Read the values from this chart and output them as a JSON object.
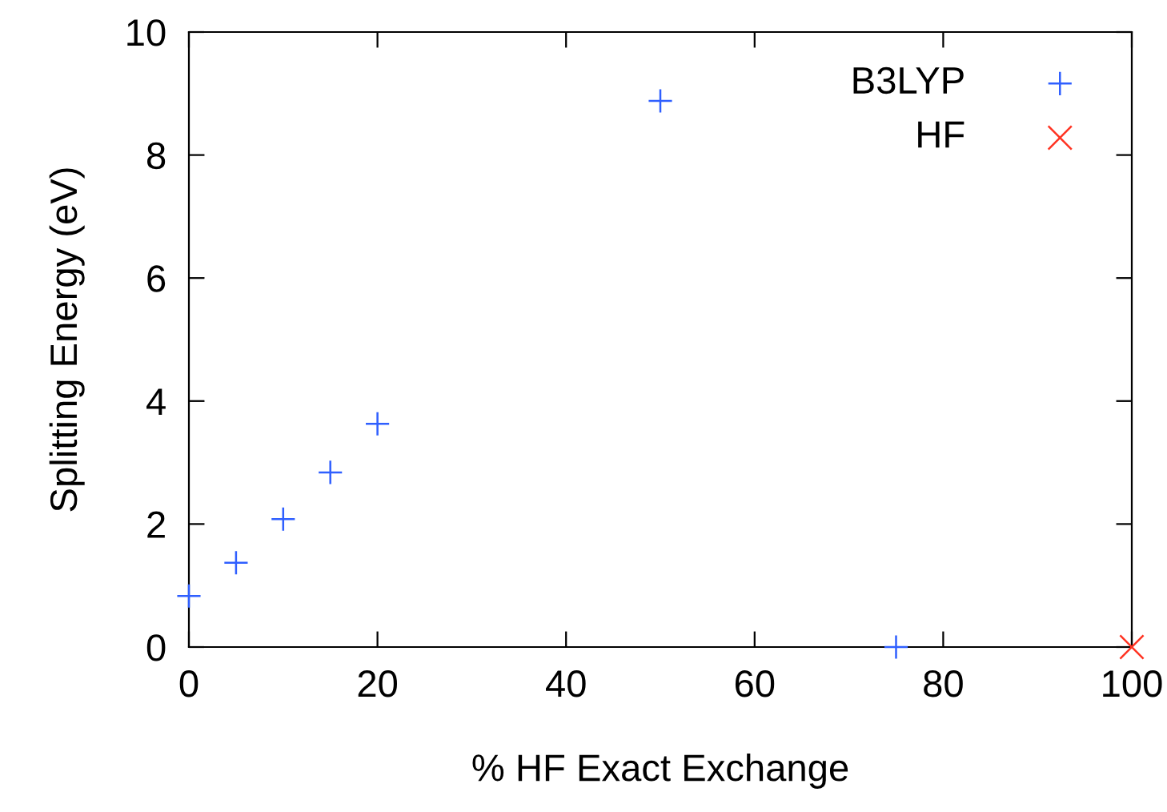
{
  "chart_data": {
    "type": "scatter",
    "xlabel": "% HF Exact Exchange",
    "ylabel": "Splitting Energy (eV)",
    "xlim": [
      0,
      100
    ],
    "ylim": [
      0,
      10
    ],
    "xticks": [
      0,
      20,
      40,
      60,
      80,
      100
    ],
    "yticks": [
      0,
      2,
      4,
      6,
      8,
      10
    ],
    "grid": false,
    "legend": "top right",
    "series": [
      {
        "name": "B3LYP",
        "color": "#2f5fff",
        "marker": "plus",
        "x": [
          0,
          5,
          10,
          15,
          20,
          50,
          75
        ],
        "values": [
          0.83,
          1.37,
          2.08,
          2.84,
          3.63,
          8.88,
          0
        ]
      },
      {
        "name": "HF",
        "color": "#ff3322",
        "marker": "cross",
        "x": [
          100
        ],
        "values": [
          0
        ]
      }
    ]
  }
}
